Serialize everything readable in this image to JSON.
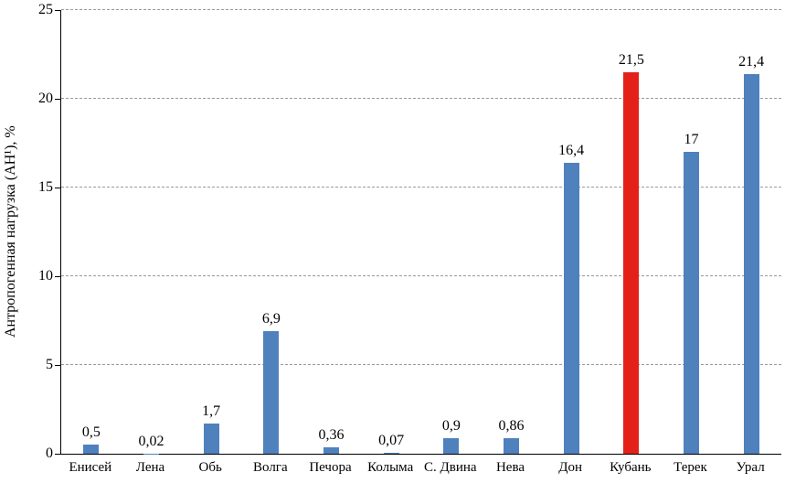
{
  "chart_data": {
    "type": "bar",
    "title": "",
    "xlabel": "",
    "ylabel": "Антропогенная нагрузка (АН¹), %",
    "ylim": [
      0,
      25
    ],
    "yticks": [
      0,
      5,
      10,
      15,
      20,
      25
    ],
    "grid": "dashed horizontal gridlines at major y ticks",
    "legend": "none",
    "categories": [
      "Енисей",
      "Лена",
      "Обь",
      "Волга",
      "Печора",
      "Колыма",
      "С. Двина",
      "Нева",
      "Дон",
      "Кубань",
      "Терек",
      "Урал"
    ],
    "values": [
      0.5,
      0.02,
      1.7,
      6.9,
      0.36,
      0.07,
      0.9,
      0.86,
      16.4,
      21.5,
      17,
      21.4
    ],
    "value_labels": [
      "0,5",
      "0,02",
      "1,7",
      "6,9",
      "0,36",
      "0,07",
      "0,9",
      "0,86",
      "16,4",
      "21,5",
      "17",
      "21,4"
    ],
    "bar_color_default": "#4f81bd",
    "bar_color_highlight": "#e32119",
    "highlight_category": "Кубань",
    "highlight_index": 9
  }
}
